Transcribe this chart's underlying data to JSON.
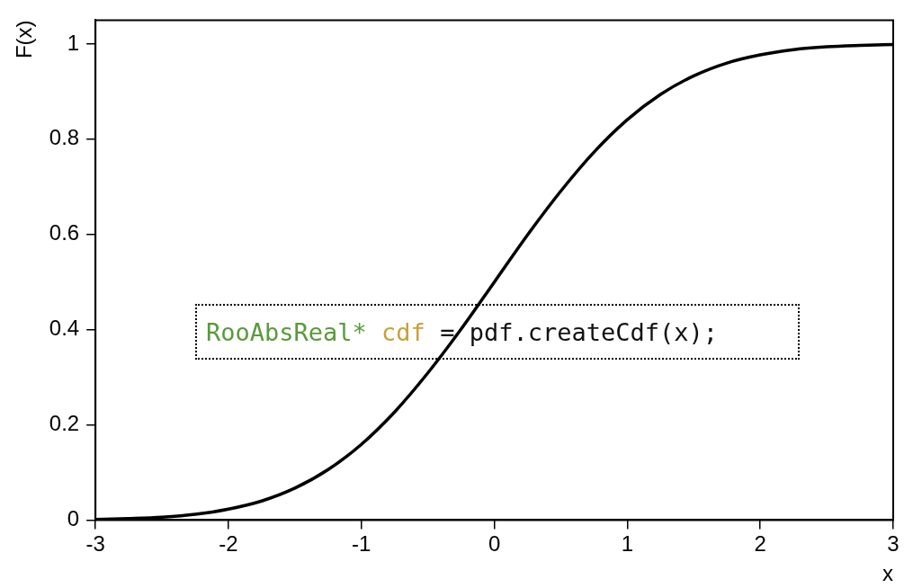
{
  "chart_data": {
    "type": "line",
    "xlabel": "x",
    "ylabel": "F(x)",
    "x": [
      -3,
      -2.75,
      -2.5,
      -2.25,
      -2,
      -1.75,
      -1.5,
      -1.25,
      -1,
      -0.75,
      -0.5,
      -0.25,
      0,
      0.25,
      0.5,
      0.75,
      1,
      1.25,
      1.5,
      1.75,
      2,
      2.25,
      2.5,
      2.75,
      3
    ],
    "series": [
      {
        "color": "#000000",
        "values": [
          0.001,
          0.003,
          0.006,
          0.012,
          0.023,
          0.04,
          0.067,
          0.106,
          0.159,
          0.227,
          0.309,
          0.401,
          0.5,
          0.599,
          0.691,
          0.773,
          0.841,
          0.894,
          0.933,
          0.96,
          0.977,
          0.988,
          0.994,
          0.997,
          0.999
        ]
      }
    ],
    "xlim": [
      -3,
      3
    ],
    "xticks": [
      -3,
      -2,
      -1,
      0,
      1,
      2,
      3
    ],
    "ylim": [
      0,
      1.05
    ],
    "yticks": [
      0,
      0.2,
      0.4,
      0.6,
      0.8,
      1
    ],
    "annotations": [
      "RooAbsReal* cdf = pdf.createCdf(x);"
    ],
    "legend": false,
    "grid": false,
    "marker": "none",
    "line_style": "solid"
  }
}
